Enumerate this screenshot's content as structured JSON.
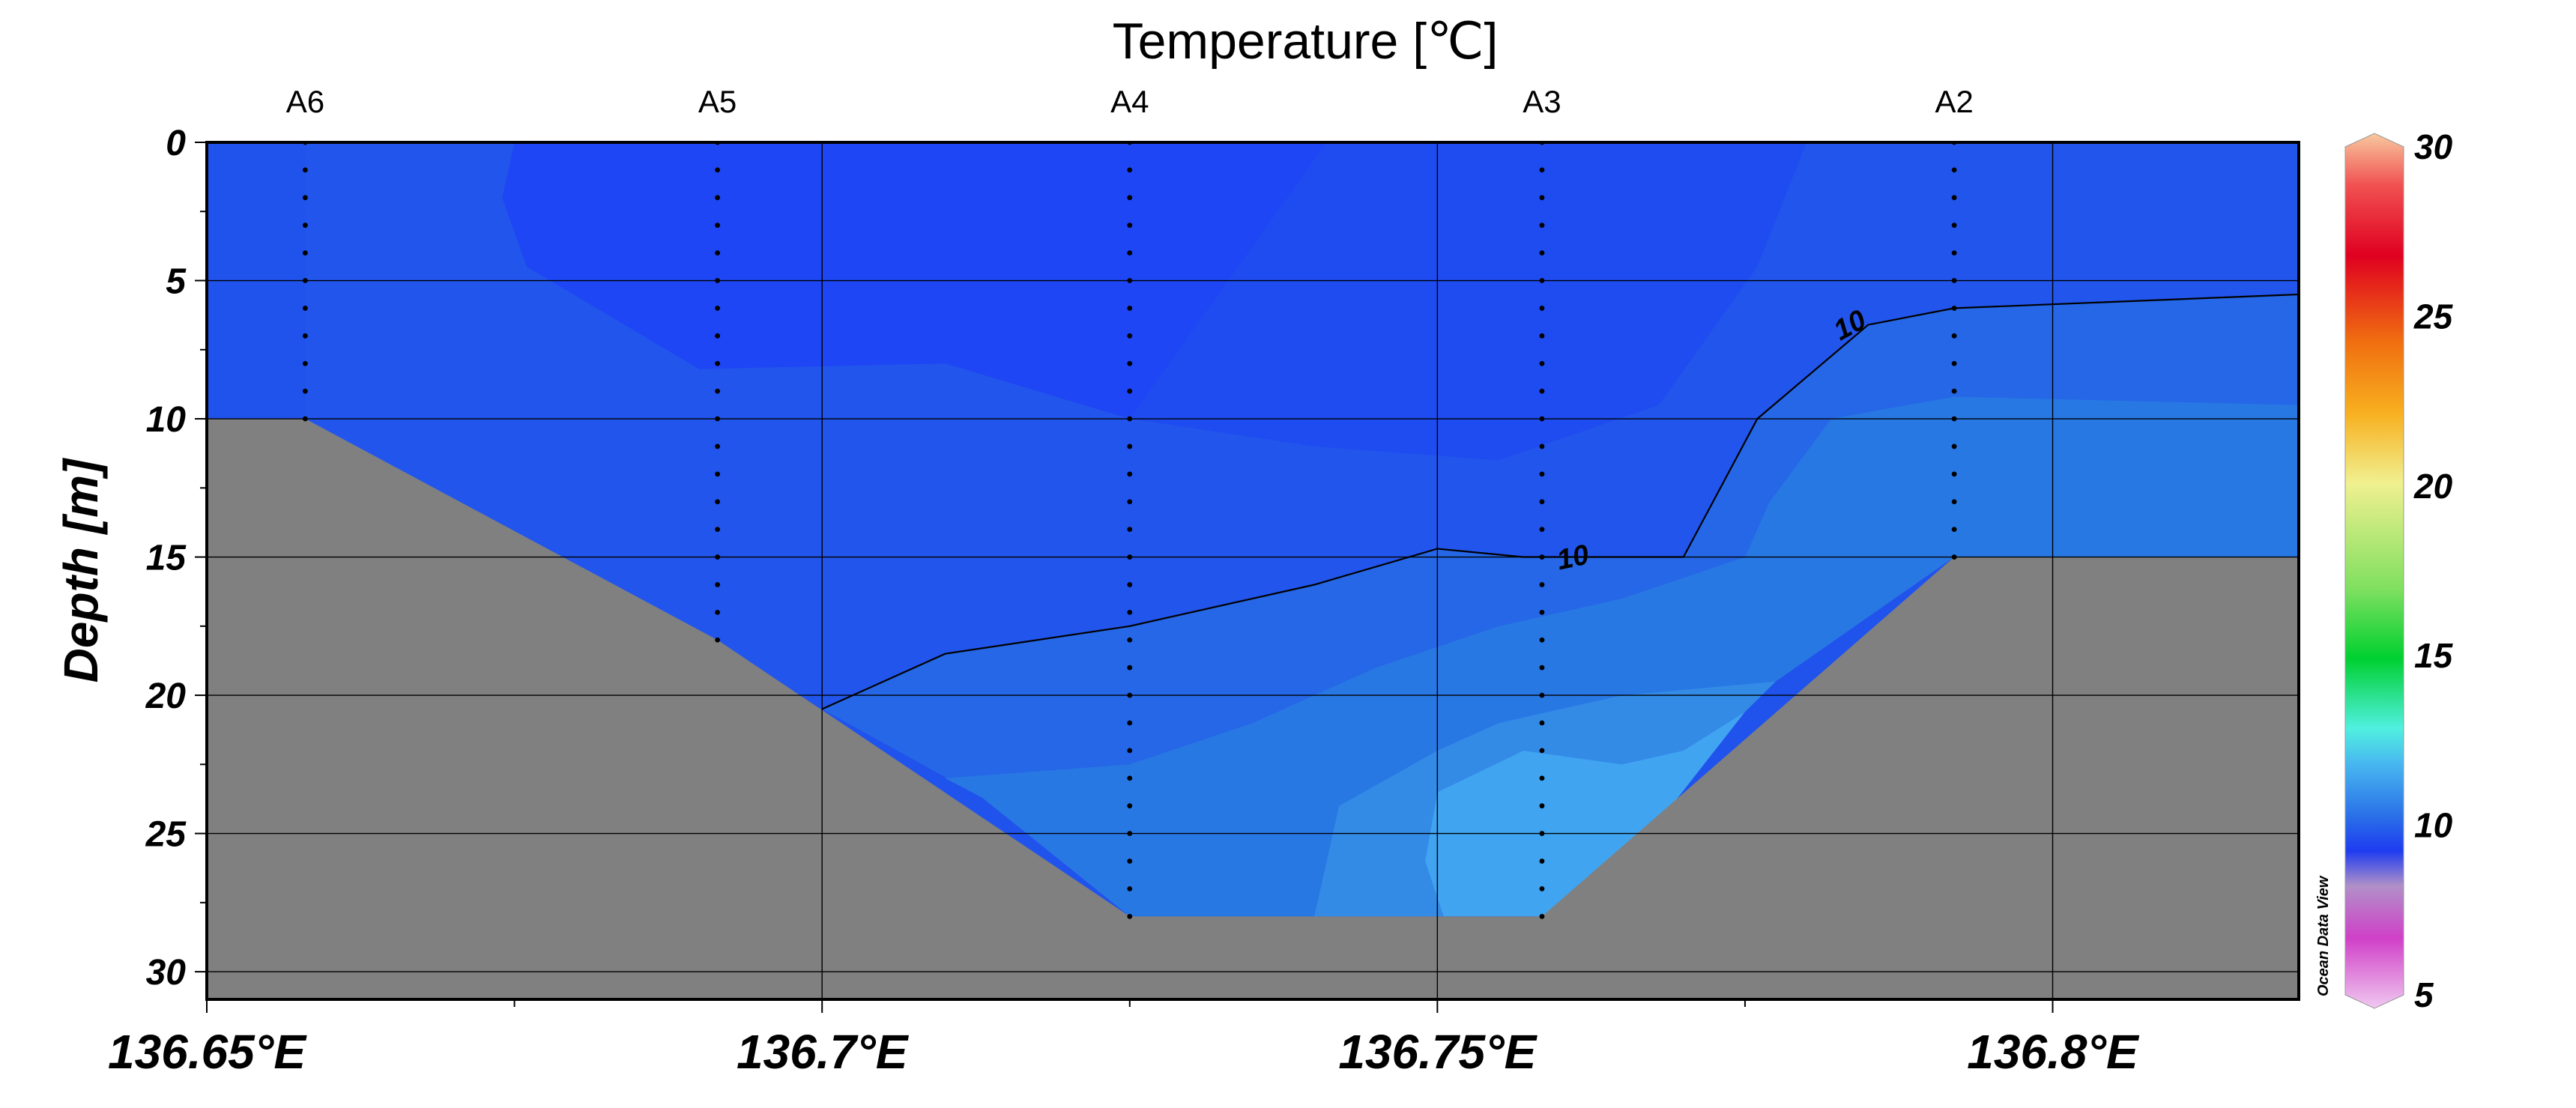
{
  "chart_data": {
    "type": "heatmap",
    "title": "Temperature [℃]",
    "ylabel": "Depth [m]",
    "xlabel": "",
    "xlim": [
      136.65,
      136.82
    ],
    "ylim": [
      31,
      0
    ],
    "x_ticks": [
      {
        "value": 136.65,
        "label": "136.65°E"
      },
      {
        "value": 136.7,
        "label": "136.7°E"
      },
      {
        "value": 136.75,
        "label": "136.75°E"
      },
      {
        "value": 136.8,
        "label": "136.8°E"
      }
    ],
    "x_minor_ticks": [
      136.675,
      136.725,
      136.775
    ],
    "y_ticks": [
      0,
      5,
      10,
      15,
      20,
      25,
      30
    ],
    "y_minor_ticks": [
      2.5,
      7.5,
      12.5,
      17.5,
      22.5,
      27.5
    ],
    "grid": true,
    "stations": [
      {
        "name": "A6",
        "x": 136.658,
        "max_depth": 10
      },
      {
        "name": "A5",
        "x": 136.6915,
        "max_depth": 18
      },
      {
        "name": "A4",
        "x": 136.725,
        "max_depth": 28
      },
      {
        "name": "A3",
        "x": 136.7585,
        "max_depth": 28
      },
      {
        "name": "A2",
        "x": 136.792,
        "max_depth": 15
      }
    ],
    "bathymetry": [
      [
        136.658,
        10
      ],
      [
        136.6915,
        18
      ],
      [
        136.725,
        28
      ],
      [
        136.7585,
        28
      ],
      [
        136.792,
        15
      ],
      [
        136.82,
        15
      ]
    ],
    "temperature_bands": [
      {
        "temp": 9.0,
        "color": "#1e46f4",
        "polygon": [
          [
            136.675,
            0
          ],
          [
            136.741,
            0
          ],
          [
            136.725,
            10
          ],
          [
            136.71,
            8
          ],
          [
            136.69,
            8.2
          ],
          [
            136.676,
            4.5
          ],
          [
            136.674,
            2
          ]
        ]
      },
      {
        "temp": 9.2,
        "color": "#1f4cf0",
        "polygon": [
          [
            136.741,
            0
          ],
          [
            136.78,
            0
          ],
          [
            136.776,
            4.5
          ],
          [
            136.768,
            9.5
          ],
          [
            136.755,
            11.5
          ],
          [
            136.74,
            11
          ],
          [
            136.725,
            10
          ]
        ]
      },
      {
        "temp": 9.6,
        "color": "#2255ec",
        "polygon": [
          [
            136.658,
            10
          ],
          [
            136.658,
            0
          ],
          [
            136.675,
            0
          ],
          [
            136.674,
            2
          ],
          [
            136.676,
            4.5
          ],
          [
            136.69,
            8.2
          ],
          [
            136.71,
            8
          ],
          [
            136.725,
            10
          ],
          [
            136.74,
            11
          ],
          [
            136.755,
            11.5
          ],
          [
            136.768,
            9.5
          ],
          [
            136.776,
            4.5
          ],
          [
            136.78,
            0
          ],
          [
            136.82,
            0
          ],
          [
            136.82,
            5.5
          ],
          [
            136.792,
            6
          ],
          [
            136.785,
            6.6
          ],
          [
            136.776,
            10
          ],
          [
            136.77,
            15
          ],
          [
            136.757,
            15
          ],
          [
            136.75,
            14.7
          ],
          [
            136.74,
            16
          ],
          [
            136.725,
            17.5
          ],
          [
            136.71,
            18.5
          ],
          [
            136.7,
            20.5
          ],
          [
            136.6915,
            18
          ]
        ]
      },
      {
        "temp": 10.0,
        "color": "#2567e6",
        "polygon": [
          [
            136.7,
            20.5
          ],
          [
            136.71,
            18.5
          ],
          [
            136.725,
            17.5
          ],
          [
            136.74,
            16
          ],
          [
            136.75,
            14.7
          ],
          [
            136.757,
            15
          ],
          [
            136.77,
            15
          ],
          [
            136.776,
            10
          ],
          [
            136.785,
            6.6
          ],
          [
            136.792,
            6
          ],
          [
            136.82,
            5.5
          ],
          [
            136.82,
            9.5
          ],
          [
            136.792,
            9.2
          ],
          [
            136.782,
            10
          ],
          [
            136.777,
            13
          ],
          [
            136.775,
            15
          ],
          [
            136.765,
            16.5
          ],
          [
            136.755,
            17.5
          ],
          [
            136.745,
            19
          ],
          [
            136.735,
            21
          ],
          [
            136.725,
            22.5
          ],
          [
            136.71,
            23
          ],
          [
            136.713,
            23.7
          ]
        ]
      },
      {
        "temp": 10.5,
        "color": "#2878e4",
        "polygon": [
          [
            136.713,
            23.7
          ],
          [
            136.71,
            23
          ],
          [
            136.725,
            22.5
          ],
          [
            136.735,
            21
          ],
          [
            136.745,
            19
          ],
          [
            136.755,
            17.5
          ],
          [
            136.765,
            16.5
          ],
          [
            136.775,
            15
          ],
          [
            136.777,
            13
          ],
          [
            136.782,
            10
          ],
          [
            136.792,
            9.2
          ],
          [
            136.82,
            9.5
          ],
          [
            136.82,
            15
          ],
          [
            136.792,
            15
          ],
          [
            136.7775,
            19.5
          ],
          [
            136.765,
            20
          ],
          [
            136.755,
            21
          ],
          [
            136.75,
            22
          ],
          [
            136.742,
            24
          ],
          [
            136.74,
            28
          ],
          [
            136.725,
            28
          ]
        ]
      },
      {
        "temp": 11.0,
        "color": "#338be6",
        "polygon": [
          [
            136.742,
            24
          ],
          [
            136.75,
            22
          ],
          [
            136.755,
            21
          ],
          [
            136.765,
            20
          ],
          [
            136.7775,
            19.5
          ],
          [
            136.775,
            20.6
          ],
          [
            136.77,
            22
          ],
          [
            136.765,
            22.5
          ],
          [
            136.757,
            22
          ],
          [
            136.75,
            23.5
          ],
          [
            136.749,
            26
          ],
          [
            136.7505,
            28
          ],
          [
            136.74,
            28
          ]
        ]
      },
      {
        "temp": 11.5,
        "color": "#40a4f0",
        "polygon": [
          [
            136.75,
            23.5
          ],
          [
            136.757,
            22
          ],
          [
            136.765,
            22.5
          ],
          [
            136.77,
            22
          ],
          [
            136.775,
            20.6
          ],
          [
            136.762,
            28
          ],
          [
            136.7505,
            28
          ],
          [
            136.749,
            26
          ]
        ]
      }
    ],
    "contour_10_line": [
      [
        136.7,
        20.5
      ],
      [
        136.71,
        18.5
      ],
      [
        136.725,
        17.5
      ],
      [
        136.74,
        16
      ],
      [
        136.75,
        14.7
      ],
      [
        136.757,
        15
      ],
      [
        136.77,
        15
      ],
      [
        136.776,
        10
      ],
      [
        136.785,
        6.6
      ],
      [
        136.792,
        6
      ],
      [
        136.82,
        5.5
      ]
    ],
    "contour_labels": [
      {
        "text": "10",
        "x": 136.761,
        "y": 15,
        "angle": -12
      },
      {
        "text": "10",
        "x": 136.7835,
        "y": 6.6,
        "angle": -28
      }
    ],
    "colorbar": {
      "min": 5,
      "max": 30,
      "ticks": [
        5,
        10,
        15,
        20,
        25,
        30
      ],
      "stops": [
        {
          "value": 5,
          "color": "#f0c8f0"
        },
        {
          "value": 7,
          "color": "#d040c8"
        },
        {
          "value": 8.5,
          "color": "#b090c8"
        },
        {
          "value": 9.5,
          "color": "#1e3cf0"
        },
        {
          "value": 10.5,
          "color": "#2a70e8"
        },
        {
          "value": 12,
          "color": "#48b8f0"
        },
        {
          "value": 13,
          "color": "#50f0e0"
        },
        {
          "value": 15,
          "color": "#00d030"
        },
        {
          "value": 17,
          "color": "#80e060"
        },
        {
          "value": 20,
          "color": "#f0f090"
        },
        {
          "value": 22,
          "color": "#f8b020"
        },
        {
          "value": 24,
          "color": "#f07010"
        },
        {
          "value": 26.5,
          "color": "#e00020"
        },
        {
          "value": 28.5,
          "color": "#f05050"
        },
        {
          "value": 30,
          "color": "#f8c8a0"
        }
      ]
    },
    "land_color": "#808080",
    "background_color": "#2053ec"
  },
  "watermark": "Ocean Data View"
}
